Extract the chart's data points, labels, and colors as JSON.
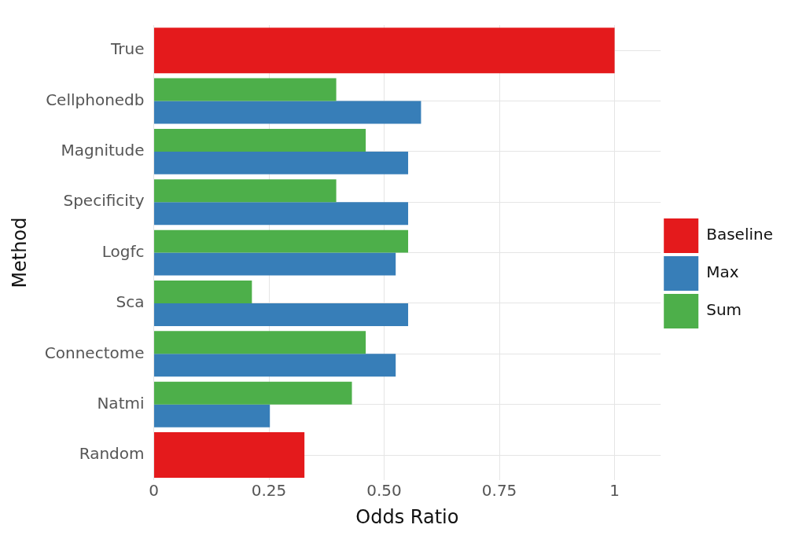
{
  "chart_data": {
    "type": "bar",
    "orientation": "horizontal",
    "xlabel": "Odds Ratio",
    "ylabel": "Method",
    "categories": [
      "True",
      "Cellphonedb",
      "Magnitude",
      "Specificity",
      "Logfc",
      "Sca",
      "Connectome",
      "Natmi",
      "Random"
    ],
    "series": [
      {
        "name": "Baseline",
        "color": "#e41a1c",
        "values": [
          1,
          null,
          null,
          null,
          null,
          null,
          null,
          null,
          0.327
        ]
      },
      {
        "name": "Max",
        "color": "#377eb8",
        "values": [
          null,
          0.58,
          0.552,
          0.552,
          0.525,
          0.552,
          0.525,
          0.252,
          null
        ]
      },
      {
        "name": "Sum",
        "color": "#4daf4a",
        "values": [
          null,
          0.396,
          0.46,
          0.396,
          0.552,
          0.213,
          0.46,
          0.43,
          null
        ]
      }
    ],
    "xlim": [
      0,
      1.1
    ],
    "xticks": [
      0,
      0.25,
      {
        "value": 0.5,
        "label": "0.50"
      },
      0.75,
      1
    ],
    "grid": true,
    "legend": "right"
  }
}
